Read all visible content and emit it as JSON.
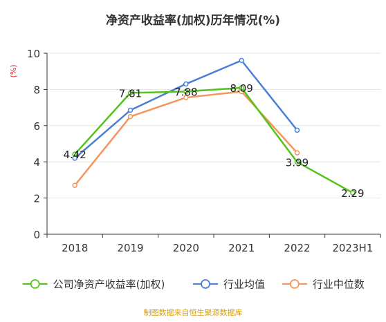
{
  "chart_data": {
    "type": "line",
    "title": "净资产收益率(加权)历年情况(%)",
    "ylabel": "(%)",
    "xlabel": "",
    "categories": [
      "2018",
      "2019",
      "2020",
      "2021",
      "2022",
      "2023H1"
    ],
    "ylim": [
      0,
      10
    ],
    "yticks": [
      0,
      2,
      4,
      6,
      8,
      10
    ],
    "grid": true,
    "legend_position": "bottom",
    "series": [
      {
        "name": "公司净资产收益率(加权)",
        "color": "#52c41a",
        "values": [
          4.42,
          7.81,
          7.88,
          8.09,
          3.99,
          2.29
        ],
        "labels": [
          "4.42",
          "7.81",
          "7.88",
          "8.09",
          "3.99",
          "2.29"
        ]
      },
      {
        "name": "行业均值",
        "color": "#4a7fd6",
        "values": [
          4.2,
          6.85,
          8.3,
          9.6,
          5.75,
          null
        ]
      },
      {
        "name": "行业中位数",
        "color": "#f5945c",
        "values": [
          2.7,
          6.5,
          7.55,
          7.88,
          4.5,
          null
        ]
      }
    ],
    "source": "制图数据来自恒生聚源数据库",
    "source_color": "#d4a017",
    "title_color": "#333333",
    "ylabel_color": "#e0202a"
  }
}
